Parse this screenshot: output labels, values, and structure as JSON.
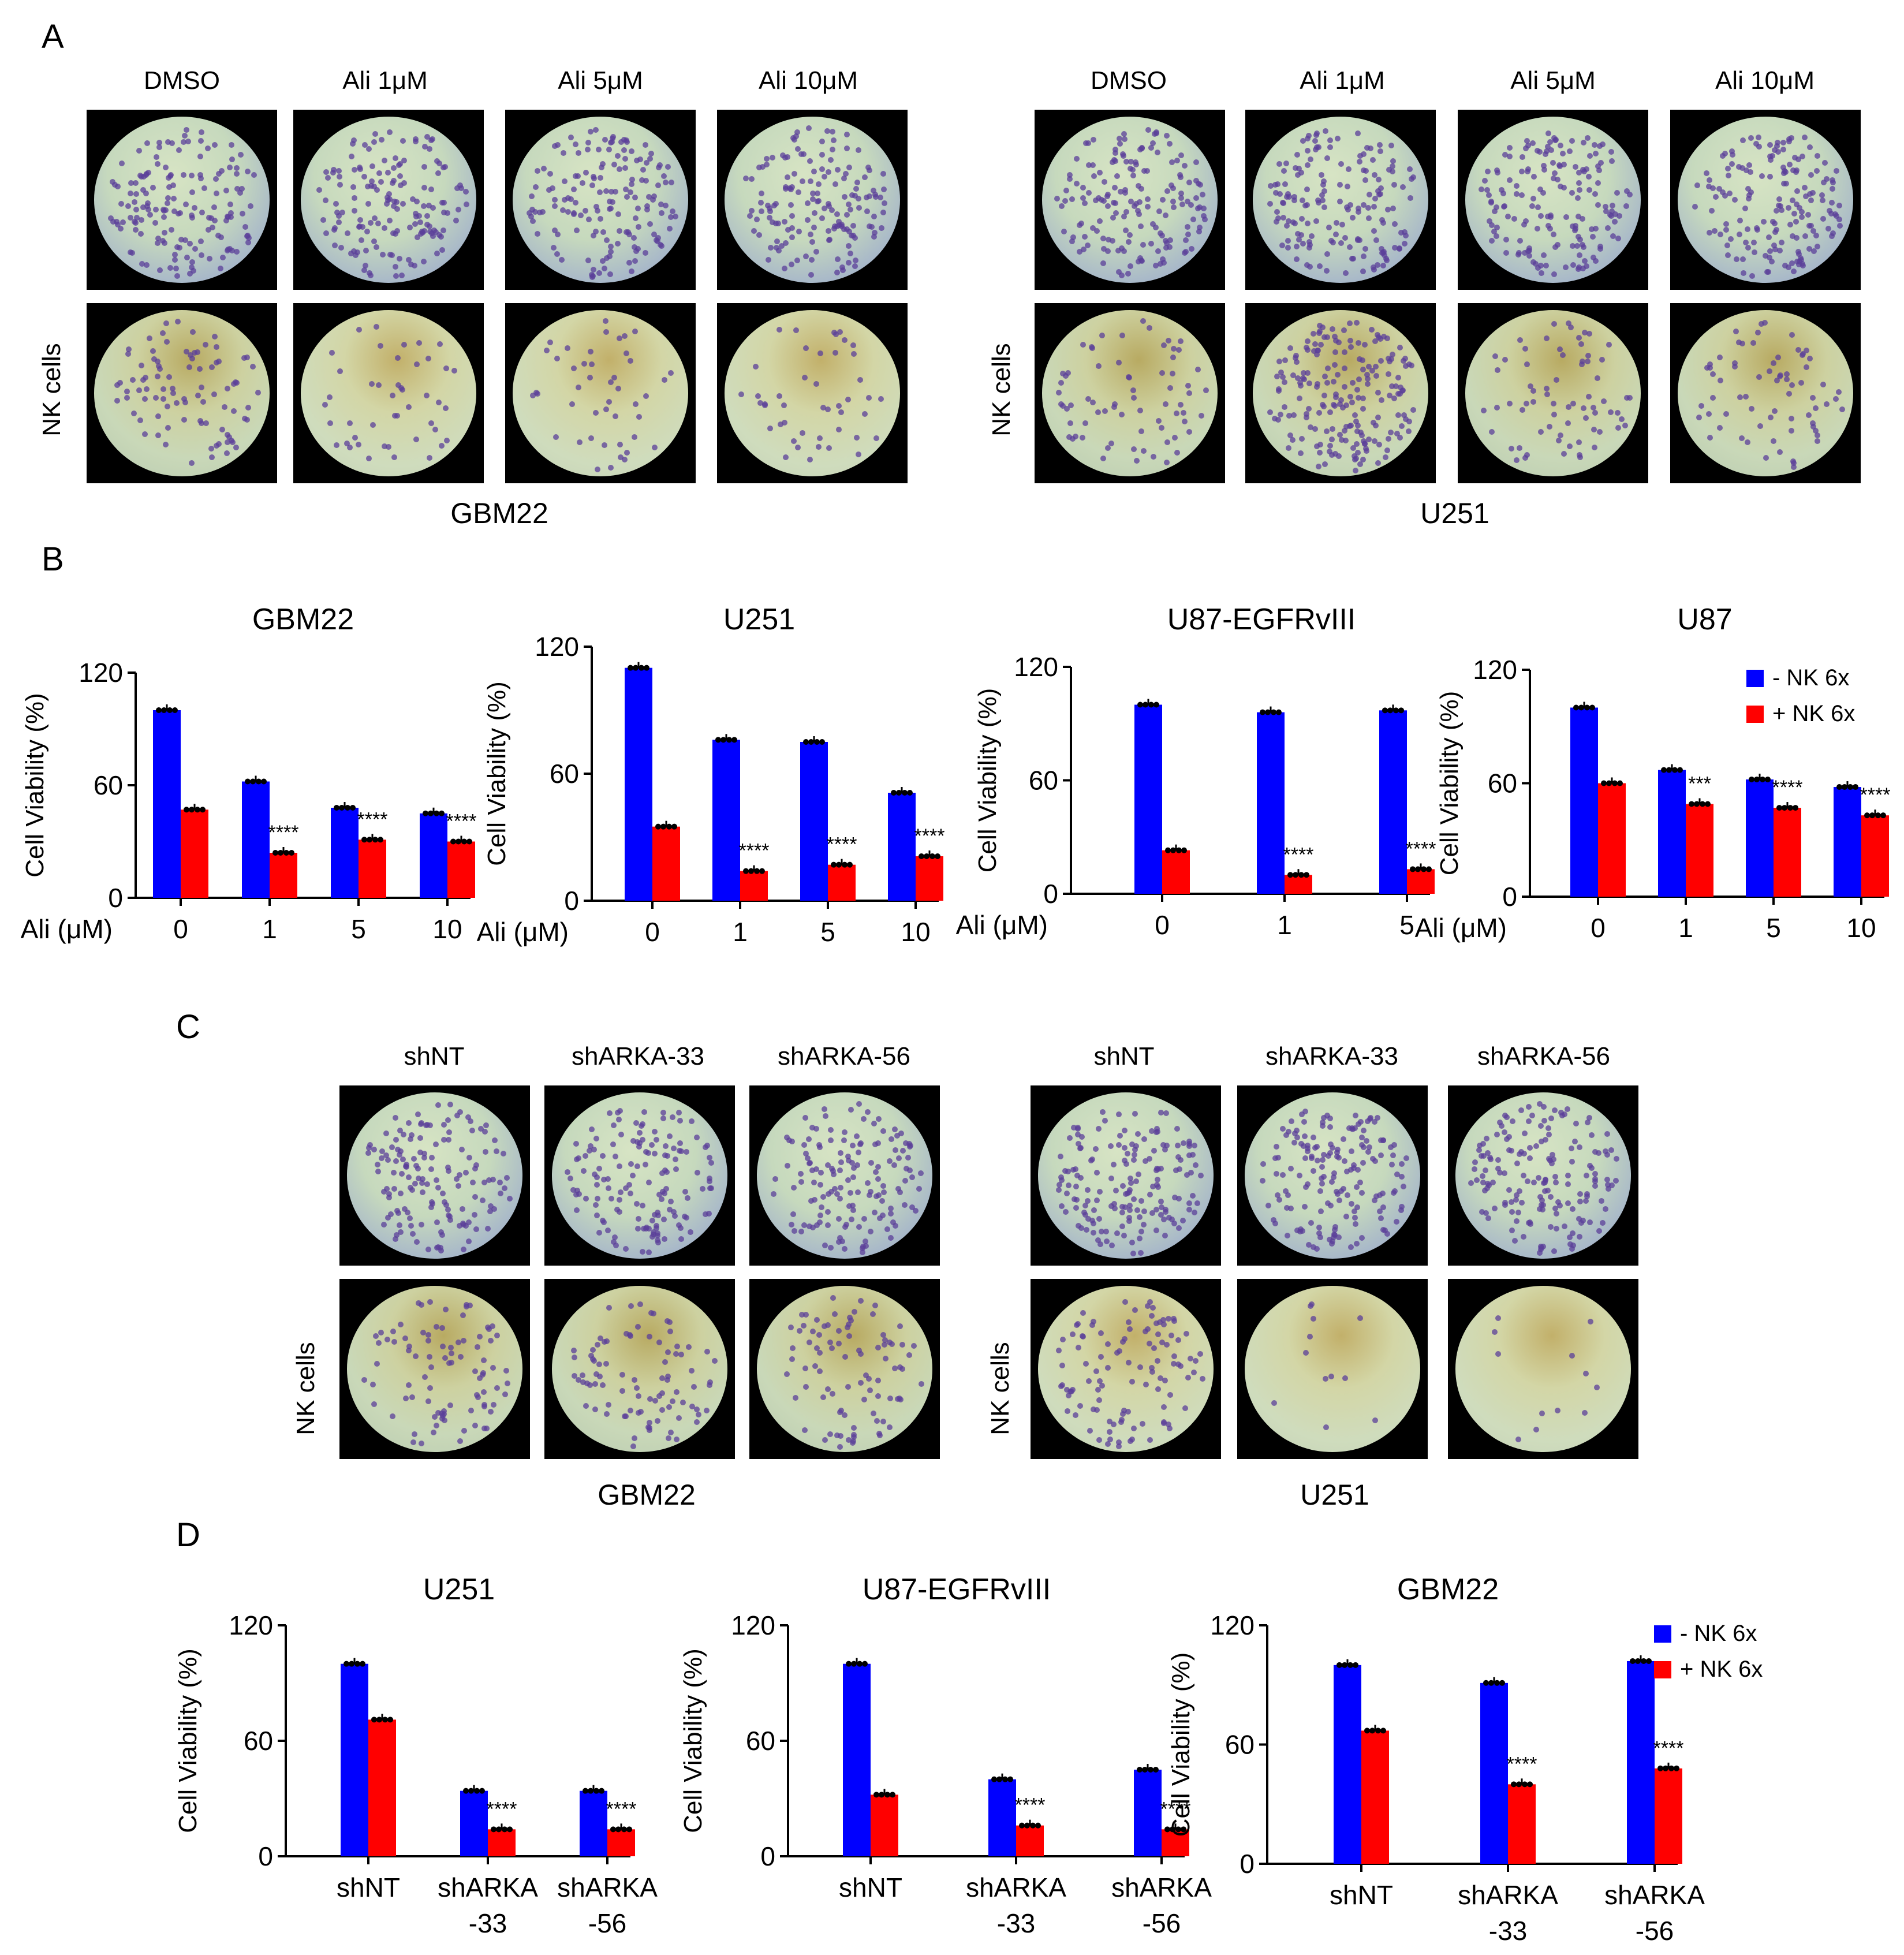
{
  "colors": {
    "minus_nk": "#0000ff",
    "plus_nk": "#ff0000",
    "dish_black": "#000000"
  },
  "panelA": {
    "letter": "A",
    "left": {
      "columns": [
        "DMSO",
        "Ali 1μM",
        "Ali 5μM",
        "Ali 10μM"
      ],
      "row_label": "NK cells",
      "cell_label": "GBM22"
    },
    "right": {
      "columns": [
        "DMSO",
        "Ali 1μM",
        "Ali 5μM",
        "Ali 10μM"
      ],
      "row_label": "NK cells",
      "cell_label": "U251"
    }
  },
  "panelB": {
    "letter": "B"
  },
  "panelC": {
    "letter": "C",
    "left": {
      "columns": [
        "shNT",
        "shARKA-33",
        "shARKA-56"
      ],
      "row_label": "NK cells",
      "cell_label": "GBM22"
    },
    "right": {
      "columns": [
        "shNT",
        "shARKA-33",
        "shARKA-56"
      ],
      "row_label": "NK cells",
      "cell_label": "U251"
    }
  },
  "panelD": {
    "letter": "D"
  },
  "chart_data": [
    {
      "panel": "B",
      "type": "bar",
      "title": "GBM22",
      "ylabel": "Cell Viability (%)",
      "xlabel": "Ali (μM)",
      "categories": [
        "0",
        "1",
        "5",
        "10"
      ],
      "yticks": [
        0,
        60,
        120
      ],
      "ylim": [
        0,
        120
      ],
      "series": [
        {
          "name": "- NK 6x",
          "values": [
            100,
            62,
            48,
            45
          ]
        },
        {
          "name": "+ NK 6x",
          "values": [
            47,
            24,
            31,
            30
          ]
        }
      ],
      "significance": [
        "",
        "****",
        "****",
        "****"
      ]
    },
    {
      "panel": "B",
      "type": "bar",
      "title": "U251",
      "ylabel": "Cell Viability (%)",
      "xlabel": "Ali (μM)",
      "categories": [
        "0",
        "1",
        "5",
        "10"
      ],
      "yticks": [
        0,
        60,
        120
      ],
      "ylim": [
        0,
        120
      ],
      "series": [
        {
          "name": "- NK 6x",
          "values": [
            110,
            76,
            75,
            51
          ]
        },
        {
          "name": "+ NK 6x",
          "values": [
            35,
            14,
            17,
            21
          ]
        }
      ],
      "significance": [
        "",
        "****",
        "****",
        "****"
      ]
    },
    {
      "panel": "B",
      "type": "bar",
      "title": "U87-EGFRvIII",
      "ylabel": "Cell Viability (%)",
      "xlabel": "Ali (μM)",
      "categories": [
        "0",
        "1",
        "5"
      ],
      "yticks": [
        0,
        60,
        120
      ],
      "ylim": [
        0,
        120
      ],
      "series": [
        {
          "name": "- NK 6x",
          "values": [
            100,
            96,
            97
          ]
        },
        {
          "name": "+ NK 6x",
          "values": [
            23,
            10,
            13
          ]
        }
      ],
      "significance": [
        "",
        "****",
        "****"
      ]
    },
    {
      "panel": "B",
      "type": "bar",
      "title": "U87",
      "ylabel": "Cell Viability (%)",
      "xlabel": "Ali (μM)",
      "categories": [
        "0",
        "1",
        "5",
        "10"
      ],
      "yticks": [
        0,
        60,
        120
      ],
      "ylim": [
        0,
        120
      ],
      "series": [
        {
          "name": "- NK 6x",
          "values": [
            100,
            67,
            62,
            58
          ]
        },
        {
          "name": "+ NK 6x",
          "values": [
            60,
            49,
            47,
            43
          ]
        }
      ],
      "significance": [
        "",
        "***",
        "****",
        "****"
      ],
      "legend": [
        "- NK 6x",
        "+ NK 6x"
      ]
    },
    {
      "panel": "D",
      "type": "bar",
      "title": "U251",
      "ylabel": "Cell Viability (%)",
      "categories": [
        "shNT",
        "shARKA\n-33",
        "shARKA\n-56"
      ],
      "yticks": [
        0,
        60,
        120
      ],
      "ylim": [
        0,
        120
      ],
      "series": [
        {
          "name": "- NK 6x",
          "values": [
            100,
            34,
            34
          ]
        },
        {
          "name": "+ NK 6x",
          "values": [
            71,
            14,
            14
          ]
        }
      ],
      "significance": [
        "",
        "****",
        "****"
      ]
    },
    {
      "panel": "D",
      "type": "bar",
      "title": "U87-EGFRvIII",
      "ylabel": "Cell Viability (%)",
      "categories": [
        "shNT",
        "shARKA\n-33",
        "shARKA\n-56"
      ],
      "yticks": [
        0,
        60,
        120
      ],
      "ylim": [
        0,
        120
      ],
      "series": [
        {
          "name": "- NK 6x",
          "values": [
            100,
            40,
            45
          ]
        },
        {
          "name": "+ NK 6x",
          "values": [
            32,
            16,
            14
          ]
        }
      ],
      "significance": [
        "",
        "****",
        "****"
      ]
    },
    {
      "panel": "D",
      "type": "bar",
      "title": "GBM22",
      "ylabel": "Cell Viability (%)",
      "categories": [
        "shNT",
        "shARKA\n-33",
        "shARKA\n-56"
      ],
      "yticks": [
        0,
        60,
        120
      ],
      "ylim": [
        0,
        120
      ],
      "series": [
        {
          "name": "- NK 6x",
          "values": [
            100,
            91,
            102
          ]
        },
        {
          "name": "+ NK 6x",
          "values": [
            67,
            40,
            48
          ]
        }
      ],
      "significance": [
        "",
        "****",
        "****"
      ],
      "legend": [
        "- NK 6x",
        "+ NK 6x"
      ]
    }
  ]
}
